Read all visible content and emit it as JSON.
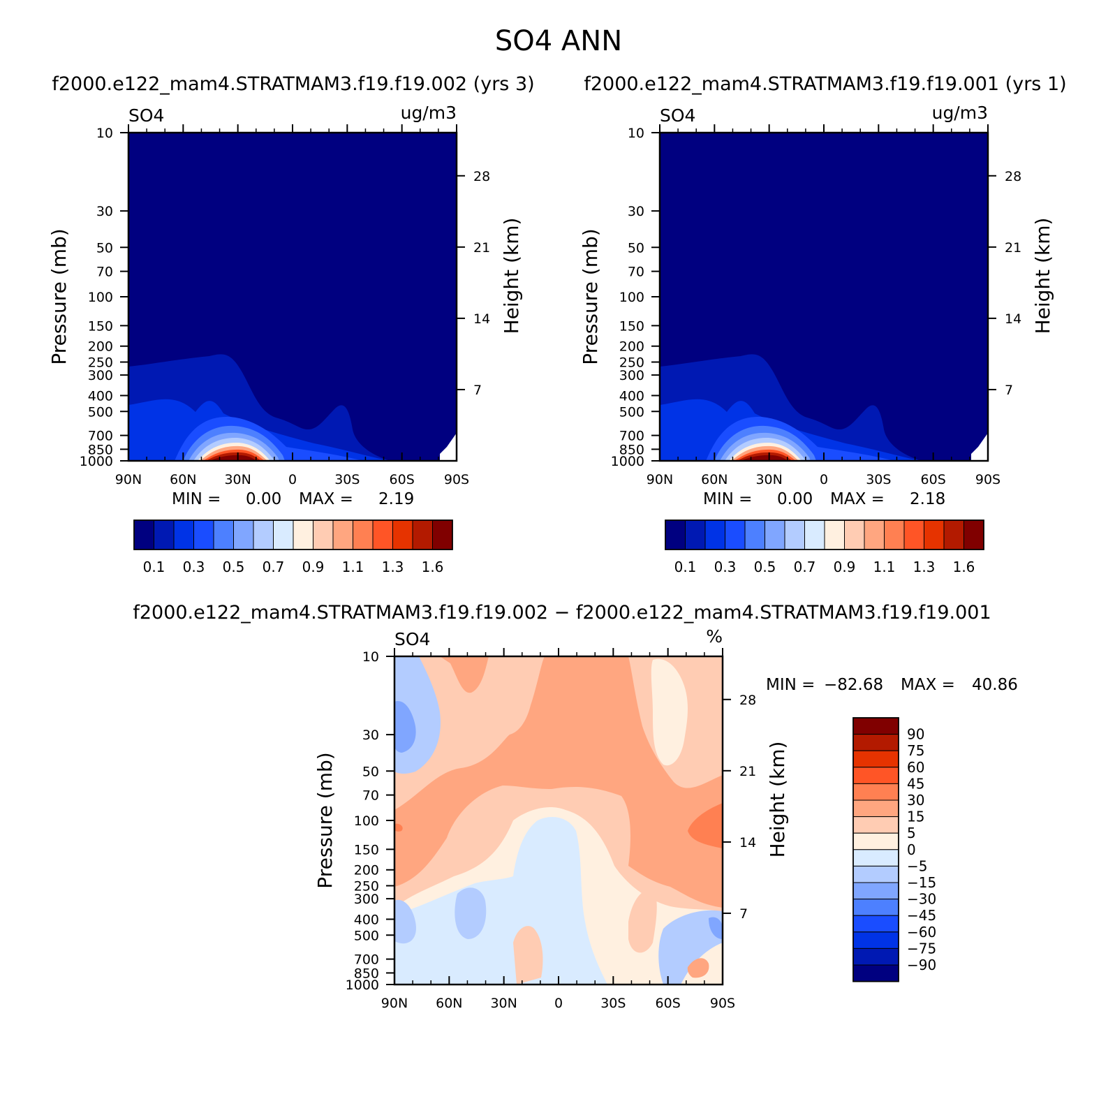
{
  "main_title": "SO4 ANN",
  "colors": {
    "abs_scale": [
      "#000080",
      "#0019b3",
      "#0033e6",
      "#1a4dff",
      "#4d80ff",
      "#80a6ff",
      "#b3ccff",
      "#d9ebff",
      "#fff0e0",
      "#ffccb3",
      "#ffa680",
      "#ff8052",
      "#ff5526",
      "#e63300",
      "#b31a00",
      "#800000"
    ],
    "diff_scale": [
      "#000080",
      "#0019b3",
      "#0033e6",
      "#1a4dff",
      "#4d80ff",
      "#80a6ff",
      "#b3ccff",
      "#d9ebff",
      "#fff0e0",
      "#ffccb3",
      "#ffa680",
      "#ff8052",
      "#ff5526",
      "#e63300",
      "#b31a00",
      "#800000"
    ]
  },
  "chart_data": [
    {
      "type": "heatmap",
      "id": "panel1",
      "title": "f2000.e122_mam4.STRATMAM3.f19.f19.002 (yrs 3)",
      "left_label": "SO4",
      "right_label": "ug/m3",
      "xlabel": "",
      "ylabel": "Pressure (mb)",
      "y2label": "Height (km)",
      "x_ticks": [
        "90N",
        "60N",
        "30N",
        "0",
        "30S",
        "60S",
        "90S"
      ],
      "x_range": [
        90,
        -90
      ],
      "y_ticks": [
        "10",
        "30",
        "50",
        "70",
        "100",
        "150",
        "200",
        "250",
        "300",
        "400",
        "500",
        "700",
        "850",
        "1000"
      ],
      "y_values": [
        10,
        30,
        50,
        70,
        100,
        150,
        200,
        250,
        300,
        400,
        500,
        700,
        850,
        1000
      ],
      "y_range": [
        10,
        1000
      ],
      "y2_ticks": [
        "28",
        "21",
        "14",
        "7"
      ],
      "y2_values": [
        28,
        21,
        14,
        7
      ],
      "min_label": "MIN =",
      "min_value": "0.00",
      "max_label": "MAX =",
      "max_value": "2.19",
      "colorbar_labels": [
        "0.1",
        "0.3",
        "0.5",
        "0.7",
        "0.9",
        "1.1",
        "1.3",
        "1.6"
      ],
      "levels": [
        0.05,
        0.1,
        0.2,
        0.3,
        0.4,
        0.5,
        0.6,
        0.7,
        0.8,
        0.9,
        1.0,
        1.1,
        1.2,
        1.3,
        1.6
      ]
    },
    {
      "type": "heatmap",
      "id": "panel2",
      "title": "f2000.e122_mam4.STRATMAM3.f19.f19.001 (yrs 1)",
      "left_label": "SO4",
      "right_label": "ug/m3",
      "xlabel": "",
      "ylabel": "Pressure (mb)",
      "y2label": "Height (km)",
      "x_ticks": [
        "90N",
        "60N",
        "30N",
        "0",
        "30S",
        "60S",
        "90S"
      ],
      "x_range": [
        90,
        -90
      ],
      "y_ticks": [
        "10",
        "30",
        "50",
        "70",
        "100",
        "150",
        "200",
        "250",
        "300",
        "400",
        "500",
        "700",
        "850",
        "1000"
      ],
      "y_values": [
        10,
        30,
        50,
        70,
        100,
        150,
        200,
        250,
        300,
        400,
        500,
        700,
        850,
        1000
      ],
      "y_range": [
        10,
        1000
      ],
      "y2_ticks": [
        "28",
        "21",
        "14",
        "7"
      ],
      "y2_values": [
        28,
        21,
        14,
        7
      ],
      "min_label": "MIN =",
      "min_value": "0.00",
      "max_label": "MAX =",
      "max_value": "2.18",
      "colorbar_labels": [
        "0.1",
        "0.3",
        "0.5",
        "0.7",
        "0.9",
        "1.1",
        "1.3",
        "1.6"
      ],
      "levels": [
        0.05,
        0.1,
        0.2,
        0.3,
        0.4,
        0.5,
        0.6,
        0.7,
        0.8,
        0.9,
        1.0,
        1.1,
        1.2,
        1.3,
        1.6
      ]
    },
    {
      "type": "heatmap",
      "id": "panel3",
      "title": "f2000.e122_mam4.STRATMAM3.f19.f19.002 − f2000.e122_mam4.STRATMAM3.f19.f19.001",
      "left_label": "SO4",
      "right_label": "%",
      "xlabel": "",
      "ylabel": "Pressure (mb)",
      "y2label": "Height (km)",
      "x_ticks": [
        "90N",
        "60N",
        "30N",
        "0",
        "30S",
        "60S",
        "90S"
      ],
      "x_range": [
        90,
        -90
      ],
      "y_ticks": [
        "10",
        "30",
        "50",
        "70",
        "100",
        "150",
        "200",
        "250",
        "300",
        "400",
        "500",
        "700",
        "850",
        "1000"
      ],
      "y_values": [
        10,
        30,
        50,
        70,
        100,
        150,
        200,
        250,
        300,
        400,
        500,
        700,
        850,
        1000
      ],
      "y_range": [
        10,
        1000
      ],
      "y2_ticks": [
        "28",
        "21",
        "14",
        "7"
      ],
      "y2_values": [
        28,
        21,
        14,
        7
      ],
      "min_label": "MIN =",
      "min_value": "−82.68",
      "max_label": "MAX =",
      "max_value": "40.86",
      "colorbar_labels": [
        "90",
        "75",
        "60",
        "45",
        "30",
        "15",
        "5",
        "0",
        "−5",
        "−15",
        "−30",
        "−45",
        "−60",
        "−75",
        "−90"
      ],
      "levels": [
        -90,
        -75,
        -60,
        -45,
        -30,
        -15,
        -5,
        0,
        5,
        15,
        30,
        45,
        60,
        75,
        90
      ]
    }
  ]
}
